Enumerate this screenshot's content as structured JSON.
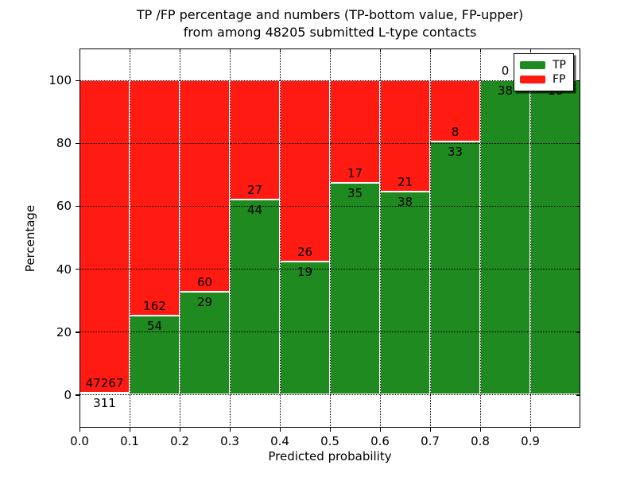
{
  "chart": {
    "title_line1": "TP /FP percentage and numbers (TP-bottom value, FP-upper)",
    "title_line2": "from among 48205 submitted L-type contacts",
    "xlabel": "Predicted probability",
    "ylabel": "Percentage"
  },
  "chart_data": {
    "type": "bar",
    "subtype": "stacked-normalized-percent",
    "title": "TP /FP percentage and numbers (TP-bottom value, FP-upper) from among 48205 submitted L-type contacts",
    "xlabel": "Predicted probability",
    "ylabel": "Percentage",
    "categories": [
      "0.0-0.1",
      "0.1-0.2",
      "0.2-0.3",
      "0.3-0.4",
      "0.4-0.5",
      "0.5-0.6",
      "0.6-0.7",
      "0.7-0.8",
      "0.8-0.9",
      "0.9-1.0"
    ],
    "series": [
      {
        "name": "TP",
        "color": "#1f8a1f",
        "counts": [
          311,
          54,
          29,
          44,
          19,
          35,
          38,
          33,
          38,
          16
        ]
      },
      {
        "name": "FP",
        "color": "#ff1b12",
        "counts": [
          47267,
          162,
          60,
          27,
          26,
          17,
          21,
          8,
          0,
          0
        ]
      }
    ],
    "tp_percent_of_bin": [
      0.65,
      25.0,
      32.58,
      61.97,
      42.22,
      67.31,
      64.41,
      80.49,
      100.0,
      100.0
    ],
    "total_contacts": 48205,
    "x_tick_labels": [
      "0.0",
      "0.1",
      "0.2",
      "0.3",
      "0.4",
      "0.5",
      "0.6",
      "0.7",
      "0.8",
      "0.9"
    ],
    "y_ticks": [
      0,
      20,
      40,
      60,
      80,
      100
    ],
    "xlim": [
      0.0,
      1.0
    ],
    "ylim": [
      -10.5,
      110
    ],
    "grid": "dotted, drawn over bars",
    "bar_edge_color": "#ffffff",
    "legend_position": "upper right",
    "legend_entries": [
      {
        "label": "TP",
        "color": "#1f8a1f"
      },
      {
        "label": "FP",
        "color": "#ff1b12"
      }
    ]
  }
}
